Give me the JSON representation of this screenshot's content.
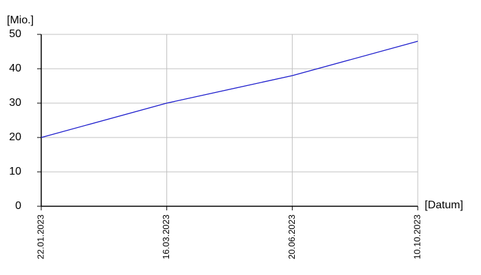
{
  "chart_data": {
    "type": "line",
    "y_label": "[Mio.]",
    "x_label": "[Datum]",
    "categories": [
      "22.01.2023",
      "16.03.2023",
      "20.06.2023",
      "10.10.2023"
    ],
    "series": [
      {
        "color": "#1a1acc",
        "values": [
          20,
          30,
          38,
          48
        ]
      }
    ],
    "ylim": [
      0,
      50
    ],
    "yticks": [
      0,
      10,
      20,
      30,
      40,
      50
    ],
    "grid": true
  }
}
